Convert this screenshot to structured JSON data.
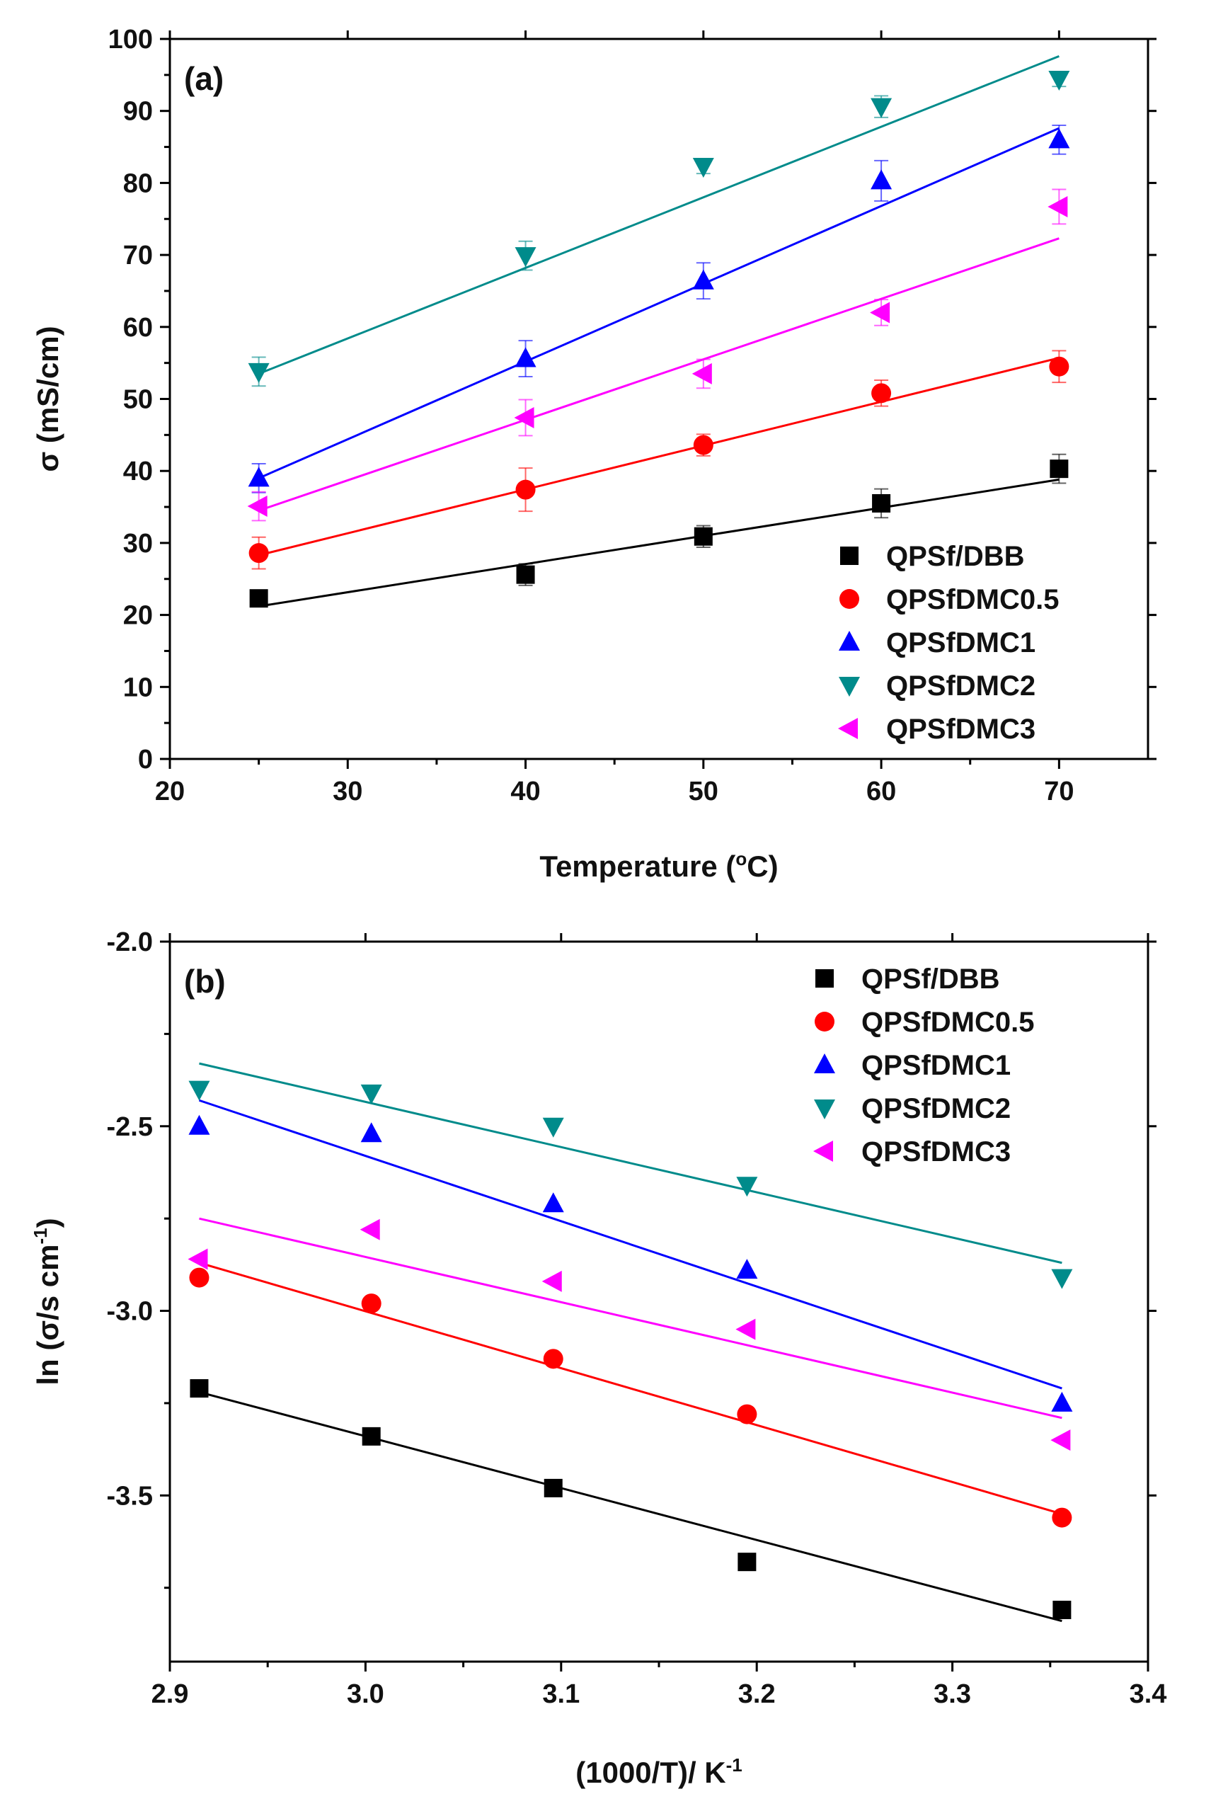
{
  "chart_data": [
    {
      "type": "scatter",
      "panel_label": "(a)",
      "xlabel": "Temperature (°C)",
      "xlabel_parts": {
        "prefix": "Temperature (",
        "superscript": "o",
        "suffix": "C)"
      },
      "ylabel": "σ (mS/cm)",
      "xlim": [
        20,
        75
      ],
      "ylim": [
        0,
        100
      ],
      "xticks": [
        20,
        30,
        40,
        50,
        60,
        70
      ],
      "yticks": [
        0,
        10,
        20,
        30,
        40,
        50,
        60,
        70,
        80,
        90,
        100
      ],
      "legend_position": "bottom-right",
      "series": [
        {
          "name": "QPSf/DBB",
          "color": "#000000",
          "marker": "square",
          "x": [
            25,
            40,
            50,
            60,
            70
          ],
          "y": [
            22.3,
            25.6,
            30.9,
            35.5,
            40.3
          ],
          "error": [
            1.0,
            1.5,
            1.5,
            2.0,
            2.0
          ],
          "fit": [
            [
              25,
              21.2
            ],
            [
              70,
              38.8
            ]
          ]
        },
        {
          "name": "QPSfDMC0.5",
          "color": "#ff0000",
          "marker": "circle",
          "x": [
            25,
            40,
            50,
            60,
            70
          ],
          "y": [
            28.6,
            37.4,
            43.6,
            50.8,
            54.5
          ],
          "error": [
            2.2,
            3.0,
            1.5,
            1.8,
            2.2
          ],
          "fit": [
            [
              25,
              28.3
            ],
            [
              70,
              55.7
            ]
          ]
        },
        {
          "name": "QPSfDMC1",
          "color": "#0000ff",
          "marker": "triangle-up",
          "x": [
            25,
            40,
            50,
            60,
            70
          ],
          "y": [
            39.0,
            55.6,
            66.4,
            80.3,
            86.0
          ],
          "error": [
            2.0,
            2.5,
            2.5,
            2.8,
            2.0
          ],
          "fit": [
            [
              25,
              39.0
            ],
            [
              70,
              87.6
            ]
          ]
        },
        {
          "name": "QPSfDMC2",
          "color": "#008b8b",
          "marker": "triangle-down",
          "x": [
            25,
            40,
            50,
            60,
            70
          ],
          "y": [
            53.8,
            69.9,
            82.3,
            90.6,
            94.4
          ],
          "error": [
            2.0,
            2.0,
            1.0,
            1.5,
            1.0
          ],
          "fit": [
            [
              25,
              53.5
            ],
            [
              70,
              97.6
            ]
          ]
        },
        {
          "name": "QPSfDMC3",
          "color": "#ff00ff",
          "marker": "triangle-left",
          "x": [
            25,
            40,
            50,
            60,
            70
          ],
          "y": [
            35.1,
            47.4,
            53.5,
            62.0,
            76.7
          ],
          "error": [
            2.0,
            2.5,
            2.0,
            1.8,
            2.4
          ],
          "fit": [
            [
              25,
              34.5
            ],
            [
              70,
              72.3
            ]
          ]
        }
      ]
    },
    {
      "type": "scatter",
      "panel_label": "(b)",
      "xlabel": "(1000/T)/ K⁻¹",
      "xlabel_parts": {
        "prefix": "(1000/T)/ K",
        "superscript": "-1",
        "suffix": ""
      },
      "ylabel": "ln (σ/s cm⁻¹)",
      "ylabel_parts": {
        "prefix": "ln (σ/s cm",
        "superscript": "-1",
        "suffix": ")"
      },
      "xlim": [
        2.9,
        3.4
      ],
      "ylim": [
        -3.95,
        -2.0
      ],
      "xticks": [
        2.9,
        3.0,
        3.1,
        3.2,
        3.3,
        3.4
      ],
      "xtick_labels": [
        "2.9",
        "3.0",
        "3.1",
        "3.2",
        "3.3",
        "3.4"
      ],
      "yticks": [
        -3.5,
        -3.0,
        -2.5,
        -2.0
      ],
      "ytick_labels": [
        "-3.5",
        "-3.0",
        "-2.5",
        "-2.0"
      ],
      "legend_position": "top-right",
      "series": [
        {
          "name": "QPSf/DBB",
          "color": "#000000",
          "marker": "square",
          "x": [
            2.915,
            3.003,
            3.096,
            3.195,
            3.356
          ],
          "y": [
            -3.21,
            -3.34,
            -3.48,
            -3.68,
            -3.81
          ],
          "fit": [
            [
              2.915,
              -3.22
            ],
            [
              3.356,
              -3.84
            ]
          ]
        },
        {
          "name": "QPSfDMC0.5",
          "color": "#ff0000",
          "marker": "circle",
          "x": [
            2.915,
            3.003,
            3.096,
            3.195,
            3.356
          ],
          "y": [
            -2.91,
            -2.98,
            -3.13,
            -3.28,
            -3.56
          ],
          "fit": [
            [
              2.915,
              -2.87
            ],
            [
              3.356,
              -3.55
            ]
          ]
        },
        {
          "name": "QPSfDMC1",
          "color": "#0000ff",
          "marker": "triangle-up",
          "x": [
            2.915,
            3.003,
            3.096,
            3.195,
            3.356
          ],
          "y": [
            -2.5,
            -2.52,
            -2.71,
            -2.89,
            -3.25
          ],
          "fit": [
            [
              2.915,
              -2.43
            ],
            [
              3.356,
              -3.21
            ]
          ]
        },
        {
          "name": "QPSfDMC2",
          "color": "#008b8b",
          "marker": "triangle-down",
          "x": [
            2.915,
            3.003,
            3.096,
            3.195,
            3.356
          ],
          "y": [
            -2.4,
            -2.41,
            -2.5,
            -2.66,
            -2.91
          ],
          "fit": [
            [
              2.915,
              -2.33
            ],
            [
              3.356,
              -2.87
            ]
          ]
        },
        {
          "name": "QPSfDMC3",
          "color": "#ff00ff",
          "marker": "triangle-left",
          "x": [
            2.915,
            3.003,
            3.096,
            3.195,
            3.356
          ],
          "y": [
            -2.86,
            -2.78,
            -2.92,
            -3.05,
            -3.35
          ],
          "fit": [
            [
              2.915,
              -2.75
            ],
            [
              3.356,
              -3.29
            ]
          ]
        }
      ]
    }
  ]
}
